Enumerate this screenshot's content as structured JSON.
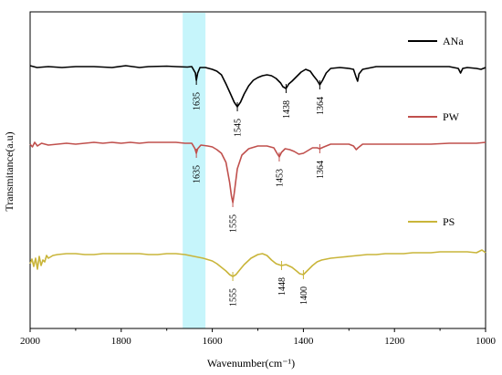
{
  "chart_data": {
    "type": "line",
    "xlabel": "Wavenumber(cm⁻¹)",
    "ylabel": "Transmitance(a.u)",
    "xlim": [
      2000,
      1000
    ],
    "x_reversed": true,
    "x_ticks": [
      2000,
      1800,
      1600,
      1400,
      1200,
      1000
    ],
    "y_ticks": [],
    "grid": false,
    "legend_placement": "right, beside each curve",
    "highlight_band": {
      "x_range": [
        1665,
        1615
      ],
      "color": "#c6f5fb"
    },
    "series": [
      {
        "name": "ANa",
        "color": "#000000",
        "baseline": 73,
        "points": [
          [
            2000,
            72
          ],
          [
            1985,
            74
          ],
          [
            1960,
            73
          ],
          [
            1930,
            74
          ],
          [
            1900,
            73
          ],
          [
            1860,
            73
          ],
          [
            1820,
            74
          ],
          [
            1790,
            72
          ],
          [
            1760,
            74
          ],
          [
            1740,
            73
          ],
          [
            1700,
            72.5
          ],
          [
            1680,
            73
          ],
          [
            1655,
            73.5
          ],
          [
            1645,
            73
          ],
          [
            1637,
            80
          ],
          [
            1635,
            88
          ],
          [
            1632,
            80
          ],
          [
            1627,
            74
          ],
          [
            1615,
            74
          ],
          [
            1600,
            76
          ],
          [
            1590,
            78
          ],
          [
            1580,
            82
          ],
          [
            1570,
            92
          ],
          [
            1560,
            103
          ],
          [
            1552,
            112
          ],
          [
            1545,
            117
          ],
          [
            1538,
            112
          ],
          [
            1530,
            103
          ],
          [
            1520,
            94
          ],
          [
            1510,
            88
          ],
          [
            1500,
            85
          ],
          [
            1490,
            83
          ],
          [
            1480,
            82
          ],
          [
            1470,
            83
          ],
          [
            1460,
            86
          ],
          [
            1450,
            91
          ],
          [
            1445,
            95
          ],
          [
            1438,
            97
          ],
          [
            1432,
            92
          ],
          [
            1425,
            89
          ],
          [
            1415,
            84
          ],
          [
            1405,
            79
          ],
          [
            1395,
            76
          ],
          [
            1385,
            78
          ],
          [
            1378,
            83
          ],
          [
            1370,
            88
          ],
          [
            1364,
            93
          ],
          [
            1358,
            88
          ],
          [
            1350,
            80
          ],
          [
            1340,
            75
          ],
          [
            1320,
            74
          ],
          [
            1300,
            75
          ],
          [
            1290,
            76
          ],
          [
            1284,
            85
          ],
          [
            1281,
            89
          ],
          [
            1278,
            81
          ],
          [
            1270,
            76
          ],
          [
            1240,
            73
          ],
          [
            1200,
            73
          ],
          [
            1160,
            73
          ],
          [
            1120,
            73
          ],
          [
            1080,
            73
          ],
          [
            1060,
            75
          ],
          [
            1055,
            80
          ],
          [
            1050,
            75
          ],
          [
            1040,
            74
          ],
          [
            1020,
            75
          ],
          [
            1010,
            76
          ],
          [
            1000,
            74
          ]
        ],
        "annotations": [
          {
            "label": "1635",
            "x": 1635,
            "y": 88
          },
          {
            "label": "1545",
            "x": 1545,
            "y": 117
          },
          {
            "label": "1438",
            "x": 1438,
            "y": 97
          },
          {
            "label": "1364",
            "x": 1364,
            "y": 93
          }
        ]
      },
      {
        "name": "PW",
        "color": "#c0504d",
        "baseline": 158,
        "points": [
          [
            2000,
            158
          ],
          [
            1995,
            161
          ],
          [
            1990,
            156
          ],
          [
            1984,
            160
          ],
          [
            1975,
            157
          ],
          [
            1960,
            159
          ],
          [
            1940,
            158
          ],
          [
            1920,
            157
          ],
          [
            1900,
            158
          ],
          [
            1880,
            157
          ],
          [
            1860,
            156
          ],
          [
            1840,
            157
          ],
          [
            1820,
            156
          ],
          [
            1800,
            157
          ],
          [
            1780,
            156
          ],
          [
            1760,
            157
          ],
          [
            1740,
            156
          ],
          [
            1720,
            156
          ],
          [
            1700,
            156
          ],
          [
            1680,
            156
          ],
          [
            1660,
            157
          ],
          [
            1645,
            157
          ],
          [
            1638,
            163
          ],
          [
            1635,
            168
          ],
          [
            1632,
            163
          ],
          [
            1625,
            159
          ],
          [
            1610,
            160
          ],
          [
            1600,
            161
          ],
          [
            1590,
            164
          ],
          [
            1580,
            168
          ],
          [
            1570,
            178
          ],
          [
            1562,
            200
          ],
          [
            1558,
            215
          ],
          [
            1555,
            222
          ],
          [
            1552,
            212
          ],
          [
            1545,
            185
          ],
          [
            1535,
            170
          ],
          [
            1520,
            163
          ],
          [
            1500,
            160
          ],
          [
            1480,
            160
          ],
          [
            1465,
            162
          ],
          [
            1458,
            168
          ],
          [
            1453,
            172
          ],
          [
            1448,
            167
          ],
          [
            1440,
            163
          ],
          [
            1430,
            164
          ],
          [
            1420,
            166
          ],
          [
            1410,
            169
          ],
          [
            1400,
            168
          ],
          [
            1390,
            165
          ],
          [
            1380,
            162
          ],
          [
            1370,
            162
          ],
          [
            1364,
            163
          ],
          [
            1355,
            161
          ],
          [
            1340,
            158
          ],
          [
            1320,
            158
          ],
          [
            1300,
            158
          ],
          [
            1290,
            160
          ],
          [
            1284,
            164
          ],
          [
            1280,
            162
          ],
          [
            1270,
            158
          ],
          [
            1240,
            158
          ],
          [
            1200,
            158
          ],
          [
            1160,
            158
          ],
          [
            1120,
            158
          ],
          [
            1080,
            157
          ],
          [
            1040,
            157
          ],
          [
            1020,
            157
          ],
          [
            1000,
            156
          ]
        ],
        "annotations": [
          {
            "label": "1635",
            "x": 1635,
            "y": 168
          },
          {
            "label": "1555",
            "x": 1555,
            "y": 222
          },
          {
            "label": "1453",
            "x": 1453,
            "y": 172
          },
          {
            "label": "1364",
            "x": 1364,
            "y": 163
          }
        ]
      },
      {
        "name": "PS",
        "color": "#c9b53a",
        "baseline": 278,
        "points": [
          [
            2000,
            289
          ],
          [
            1996,
            284
          ],
          [
            1992,
            292
          ],
          [
            1988,
            283
          ],
          [
            1984,
            295
          ],
          [
            1980,
            281
          ],
          [
            1976,
            291
          ],
          [
            1972,
            285
          ],
          [
            1968,
            287
          ],
          [
            1964,
            280
          ],
          [
            1960,
            283
          ],
          [
            1950,
            280
          ],
          [
            1940,
            279
          ],
          [
            1920,
            278
          ],
          [
            1900,
            278
          ],
          [
            1880,
            279
          ],
          [
            1860,
            279
          ],
          [
            1840,
            278
          ],
          [
            1820,
            278
          ],
          [
            1800,
            278
          ],
          [
            1780,
            278
          ],
          [
            1760,
            278
          ],
          [
            1740,
            279
          ],
          [
            1720,
            279
          ],
          [
            1700,
            278
          ],
          [
            1680,
            278
          ],
          [
            1660,
            279
          ],
          [
            1640,
            281
          ],
          [
            1620,
            283
          ],
          [
            1600,
            286
          ],
          [
            1590,
            289
          ],
          [
            1580,
            293
          ],
          [
            1570,
            297
          ],
          [
            1562,
            301
          ],
          [
            1555,
            303
          ],
          [
            1548,
            301
          ],
          [
            1540,
            296
          ],
          [
            1530,
            290
          ],
          [
            1515,
            283
          ],
          [
            1500,
            279
          ],
          [
            1490,
            278
          ],
          [
            1480,
            280
          ],
          [
            1470,
            285
          ],
          [
            1460,
            289
          ],
          [
            1448,
            291
          ],
          [
            1438,
            290
          ],
          [
            1425,
            293
          ],
          [
            1415,
            297
          ],
          [
            1408,
            300
          ],
          [
            1400,
            301
          ],
          [
            1392,
            297
          ],
          [
            1380,
            291
          ],
          [
            1370,
            287
          ],
          [
            1360,
            285
          ],
          [
            1340,
            283
          ],
          [
            1320,
            282
          ],
          [
            1300,
            281
          ],
          [
            1280,
            280
          ],
          [
            1260,
            279
          ],
          [
            1240,
            279
          ],
          [
            1220,
            278
          ],
          [
            1200,
            278
          ],
          [
            1180,
            278
          ],
          [
            1160,
            277
          ],
          [
            1140,
            277
          ],
          [
            1120,
            277
          ],
          [
            1100,
            276
          ],
          [
            1080,
            276
          ],
          [
            1060,
            276
          ],
          [
            1040,
            276
          ],
          [
            1020,
            277
          ],
          [
            1008,
            274
          ],
          [
            1000,
            277
          ]
        ],
        "annotations": [
          {
            "label": "1555",
            "x": 1555,
            "y": 303
          },
          {
            "label": "1448",
            "x": 1448,
            "y": 291
          },
          {
            "label": "1400",
            "x": 1400,
            "y": 301
          }
        ]
      }
    ]
  }
}
